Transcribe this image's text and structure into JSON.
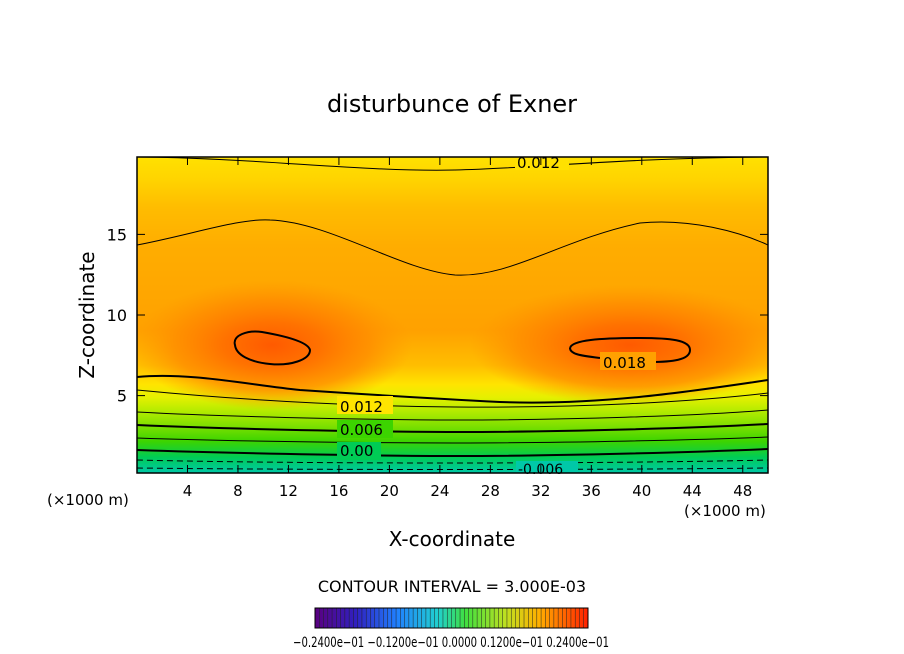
{
  "chart_data": {
    "type": "contour",
    "title": "disturbunce of Exner",
    "xlabel": "X-coordinate",
    "ylabel": "Z-coordinate",
    "x_unit_note": "(×1000 m)",
    "y_unit_note": "(×1000 m)",
    "xlim": [
      0,
      50
    ],
    "ylim": [
      0.2,
      19.8
    ],
    "x_ticks": [
      4,
      8,
      12,
      16,
      20,
      24,
      28,
      32,
      36,
      40,
      44,
      48
    ],
    "y_ticks": [
      5,
      10,
      15
    ],
    "contour_interval_text": "CONTOUR INTERVAL = 3.000E-03",
    "colorbar_labels_text": "−0.2400e−01 −0.1200e−01 0.0000 0.1200e−01 0.2400e−01",
    "colorbar_range": [
      -0.024,
      0.024
    ],
    "contour_labels": [
      {
        "text": "0.012",
        "x": 24,
        "z": 19.3
      },
      {
        "text": "0.018",
        "x": 38,
        "z": 7.6
      },
      {
        "text": "0.012",
        "x": 18,
        "z": 4.4
      },
      {
        "text": "0.006",
        "x": 18,
        "z": 2.8
      },
      {
        "text": "0.00",
        "x": 18,
        "z": 1.5
      },
      {
        "text": "-0.006",
        "x": 33,
        "z": 0.4
      }
    ],
    "field_description": {
      "max_value_centers": [
        {
          "x": 11,
          "z": 8
        },
        {
          "x": 39,
          "z": 8
        }
      ],
      "max_value": 0.02,
      "top_value": 0.012,
      "bottom_value": -0.006
    }
  }
}
